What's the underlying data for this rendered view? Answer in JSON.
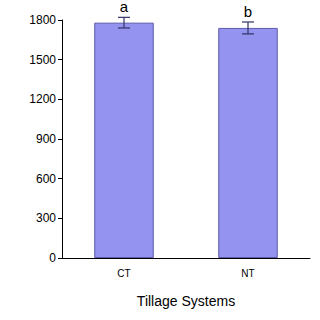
{
  "chart_data": {
    "type": "bar",
    "x_label": "Tillage Systems",
    "categories": [
      "CT",
      "NT"
    ],
    "values": [
      1780,
      1740
    ],
    "errors": [
      40,
      45
    ],
    "annotations": [
      "a",
      "b"
    ],
    "color": "#9494f0",
    "ylim": [
      0,
      1800
    ],
    "yticks": [
      0,
      300,
      600,
      900,
      1200,
      1500,
      1800
    ],
    "grid": false
  }
}
